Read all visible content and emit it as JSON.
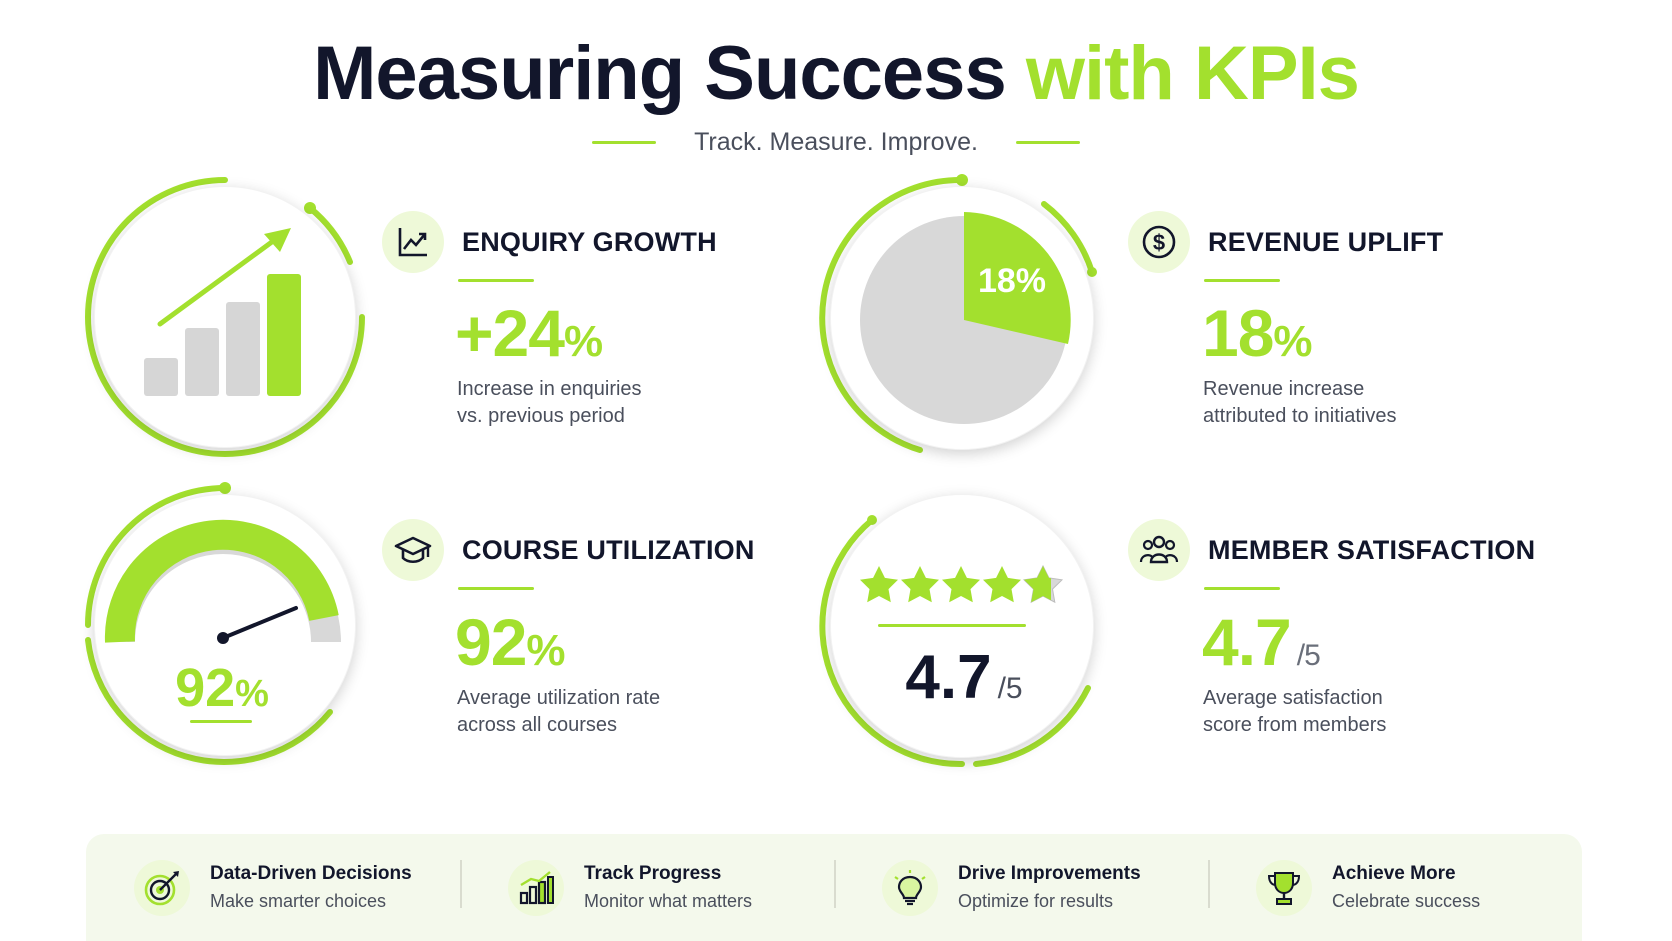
{
  "header": {
    "title_main": "Measuring Success",
    "title_accent": "with KPIs",
    "subtitle": "Track. Measure. Improve."
  },
  "colors": {
    "accent": "#a3e02e",
    "dark": "#12162b",
    "muted": "#4a4f5c",
    "gray": "#d8d8d8"
  },
  "kpis": [
    {
      "title": "ENQUIRY GROWTH",
      "value": "+24",
      "unit": "%",
      "desc_line1": "Increase in enquiries",
      "desc_line2": "vs. previous period",
      "icon": "chart-up-icon",
      "visual": "bar-chart"
    },
    {
      "title": "REVENUE UPLIFT",
      "value": "18",
      "unit": "%",
      "desc_line1": "Revenue increase",
      "desc_line2": "attributed to initiatives",
      "icon": "dollar-icon",
      "visual": "pie",
      "pie_label": "18%",
      "pie_fraction": 0.18
    },
    {
      "title": "COURSE UTILIZATION",
      "value": "92",
      "unit": "%",
      "desc_line1": "Average utilization rate",
      "desc_line2": "across all courses",
      "icon": "graduation-cap-icon",
      "visual": "gauge",
      "gauge_value": "92",
      "gauge_unit": "%",
      "gauge_fraction": 0.92
    },
    {
      "title": "MEMBER SATISFACTION",
      "value": "4.7",
      "denom": "/5",
      "desc_line1": "Average satisfaction",
      "desc_line2": "score from members",
      "icon": "people-icon",
      "visual": "stars",
      "rating_value": "4.7",
      "rating_denom": "/5",
      "rating": 4.7
    }
  ],
  "footer": [
    {
      "title": "Data-Driven Decisions",
      "sub": "Make smarter choices",
      "icon": "target-icon"
    },
    {
      "title": "Track Progress",
      "sub": "Monitor what matters",
      "icon": "bar-chart-icon"
    },
    {
      "title": "Drive Improvements",
      "sub": "Optimize for results",
      "icon": "lightbulb-icon"
    },
    {
      "title": "Achieve More",
      "sub": "Celebrate success",
      "icon": "trophy-icon"
    }
  ]
}
